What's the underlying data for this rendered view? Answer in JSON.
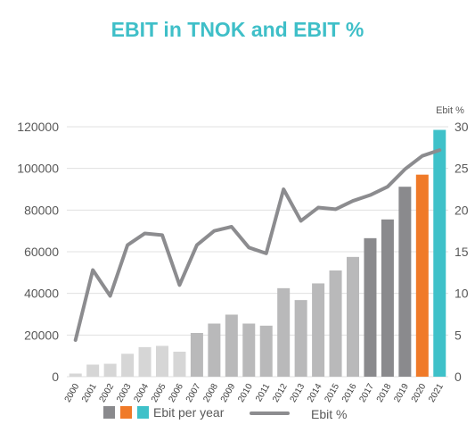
{
  "title": "EBIT in TNOK and EBIT %",
  "chart_data": {
    "type": "bar",
    "title": "EBIT in TNOK and EBIT %",
    "xlabel": "",
    "ylabel": "",
    "y2label": "Ebit %",
    "categories": [
      "2000",
      "2001",
      "2002",
      "2003",
      "2004",
      "2005",
      "2006",
      "2007",
      "2008",
      "2009",
      "2010",
      "2011",
      "2012",
      "2013",
      "2014",
      "2015",
      "2016",
      "2017",
      "2018",
      "2019",
      "2020",
      "2021"
    ],
    "ylim": [
      0,
      120000
    ],
    "y2lim": [
      0,
      30
    ],
    "yticks": [
      "0",
      "20000",
      "40000",
      "60000",
      "80000",
      "100000",
      "120000"
    ],
    "y2ticks": [
      "0",
      "5",
      "10",
      "15",
      "20",
      "25",
      "30"
    ],
    "grid": true,
    "legend_position": "bottom",
    "series": [
      {
        "name": "Ebit per year",
        "kind": "bar",
        "axis": "left",
        "values": [
          1500,
          5800,
          6200,
          11000,
          14200,
          14800,
          12000,
          21000,
          25500,
          29800,
          25500,
          24500,
          42500,
          36800,
          44800,
          51000,
          57500,
          66500,
          75500,
          91200,
          97000,
          118500
        ]
      },
      {
        "name": "Ebit %",
        "kind": "line",
        "axis": "right",
        "values": [
          4.4,
          12.8,
          9.7,
          15.8,
          17.2,
          17.0,
          11.0,
          15.8,
          17.5,
          18.0,
          15.5,
          14.8,
          22.5,
          18.7,
          20.3,
          20.1,
          21.1,
          21.8,
          22.8,
          24.9,
          26.5,
          27.2
        ]
      }
    ],
    "colors": {
      "bars_early": "#d6d6d6",
      "bars_mid": "#b9b9ba",
      "bars_late": "#8a8a8d",
      "bar_2020": "#f07a28",
      "bar_2021": "#3fc1c9",
      "line": "#8c8c8f",
      "grid": "#e0e0e0",
      "axis_text": "#595959",
      "legend_swatches": [
        "#8a8a8d",
        "#f07a28",
        "#3fc1c9"
      ]
    }
  }
}
